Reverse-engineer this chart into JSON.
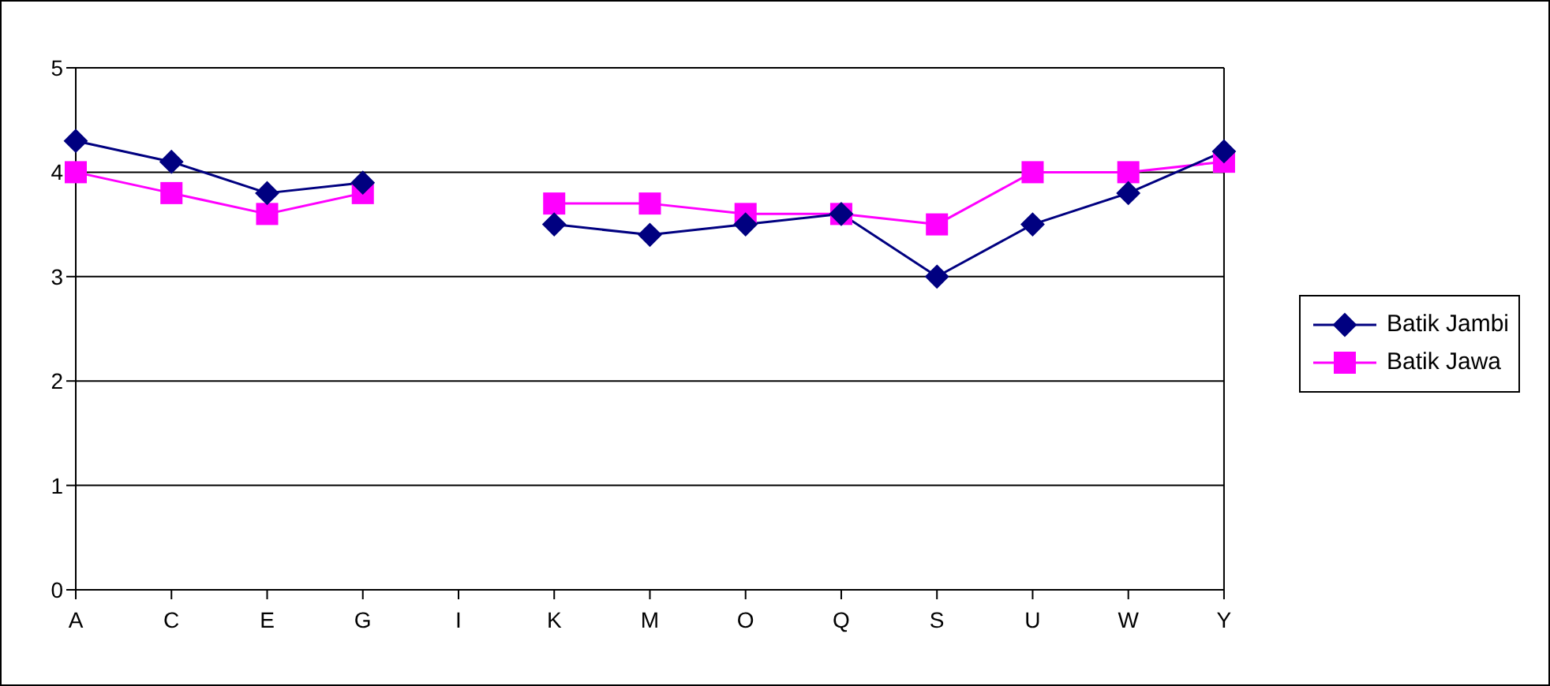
{
  "chart_data": {
    "type": "line",
    "categories": [
      "A",
      "C",
      "E",
      "G",
      "I",
      "K",
      "M",
      "O",
      "Q",
      "S",
      "U",
      "W",
      "Y"
    ],
    "series": [
      {
        "name": "Batik Jambi",
        "color": "#000080",
        "marker": "diamond",
        "values": [
          4.3,
          4.1,
          3.8,
          3.9,
          null,
          3.5,
          3.4,
          3.5,
          3.6,
          3.0,
          3.5,
          3.8,
          4.2
        ]
      },
      {
        "name": "Batik Jawa",
        "color": "#ff00ff",
        "marker": "square",
        "values": [
          4.0,
          3.8,
          3.6,
          3.8,
          null,
          3.7,
          3.7,
          3.6,
          3.6,
          3.5,
          4.0,
          4.0,
          4.1
        ]
      }
    ],
    "ylim": [
      0,
      5
    ],
    "yticks": [
      0,
      1,
      2,
      3,
      4,
      5
    ],
    "grid": "y",
    "legend": "right"
  }
}
